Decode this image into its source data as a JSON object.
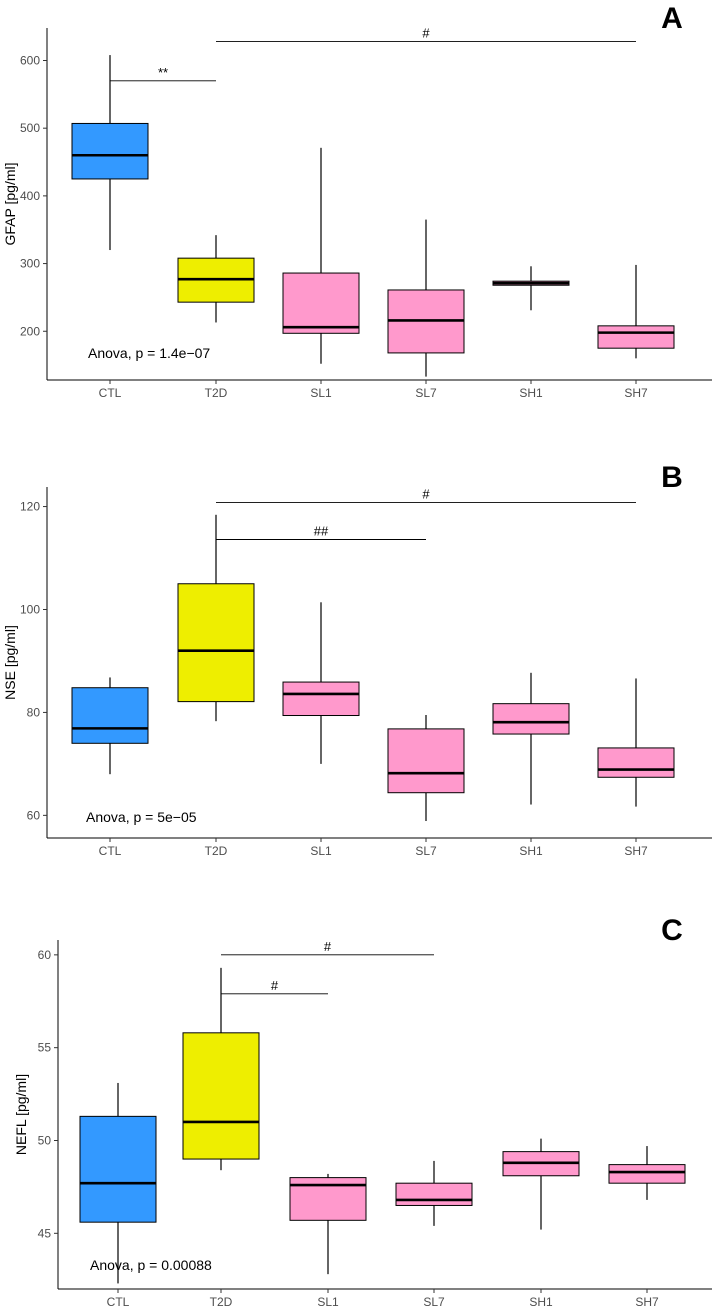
{
  "colors": {
    "CTL": "#3399ff",
    "T2D": "#eeee00",
    "SL1": "#ff99cc",
    "SL7": "#ff99cc",
    "SH1": "#ff99cc",
    "SH7": "#ff99cc"
  },
  "chart_data": [
    {
      "type": "box",
      "panel": "A",
      "ylabel": "GFAP [pg/ml]",
      "xlabel": "",
      "categories": [
        "CTL",
        "T2D",
        "SL1",
        "SL7",
        "SH1",
        "SH7"
      ],
      "ylim": [
        128,
        648
      ],
      "yticks": [
        200,
        300,
        400,
        500,
        600
      ],
      "boxes": [
        {
          "group": "CTL",
          "min": 320,
          "q1": 425,
          "median": 460,
          "q3": 507,
          "max": 608
        },
        {
          "group": "T2D",
          "min": 213,
          "q1": 243,
          "median": 277,
          "q3": 308,
          "max": 342
        },
        {
          "group": "SL1",
          "min": 152,
          "q1": 197,
          "median": 206,
          "q3": 286,
          "max": 471
        },
        {
          "group": "SL7",
          "min": 133,
          "q1": 168,
          "median": 216,
          "q3": 261,
          "max": 365
        },
        {
          "group": "SH1",
          "min": 231,
          "q1": 268,
          "median": 271,
          "q3": 274,
          "max": 296
        },
        {
          "group": "SH7",
          "min": 160,
          "q1": 175,
          "median": 198,
          "q3": 208,
          "max": 298
        }
      ],
      "annotation": "Anova, p = 1.4e−07",
      "significance": [
        {
          "from": "CTL",
          "to": "T2D",
          "y": 570,
          "label": "**"
        },
        {
          "from": "T2D",
          "to": "SH7",
          "y": 628,
          "label": "#"
        }
      ]
    },
    {
      "type": "box",
      "panel": "B",
      "ylabel": "NSE [pg/ml]",
      "xlabel": "",
      "categories": [
        "CTL",
        "T2D",
        "SL1",
        "SL7",
        "SH1",
        "SH7"
      ],
      "ylim": [
        55.6,
        123.8
      ],
      "yticks": [
        60,
        80,
        100,
        120
      ],
      "boxes": [
        {
          "group": "CTL",
          "min": 68.0,
          "q1": 74.0,
          "median": 76.9,
          "q3": 84.8,
          "max": 86.8
        },
        {
          "group": "T2D",
          "min": 78.3,
          "q1": 82.1,
          "median": 92.0,
          "q3": 105.0,
          "max": 118.4
        },
        {
          "group": "SL1",
          "min": 70.0,
          "q1": 79.4,
          "median": 83.6,
          "q3": 85.9,
          "max": 101.4
        },
        {
          "group": "SL7",
          "min": 58.9,
          "q1": 64.4,
          "median": 68.2,
          "q3": 76.8,
          "max": 79.5
        },
        {
          "group": "SH1",
          "min": 62.1,
          "q1": 75.8,
          "median": 78.1,
          "q3": 81.7,
          "max": 87.7
        },
        {
          "group": "SH7",
          "min": 61.7,
          "q1": 67.4,
          "median": 68.9,
          "q3": 73.1,
          "max": 86.6
        }
      ],
      "annotation": "Anova, p = 5e−05",
      "significance": [
        {
          "from": "T2D",
          "to": "SL7",
          "y": 113.6,
          "label": "##"
        },
        {
          "from": "T2D",
          "to": "SH7",
          "y": 120.8,
          "label": "#"
        }
      ]
    },
    {
      "type": "box",
      "panel": "C",
      "ylabel": "NEFL [pg/ml]",
      "xlabel": "",
      "categories": [
        "CTL",
        "T2D",
        "SL1",
        "SL7",
        "SH1",
        "SH7"
      ],
      "ylim": [
        42.0,
        60.8
      ],
      "yticks": [
        45,
        50,
        55,
        60
      ],
      "boxes": [
        {
          "group": "CTL",
          "min": 42.3,
          "q1": 45.6,
          "median": 47.7,
          "q3": 51.3,
          "max": 53.1
        },
        {
          "group": "T2D",
          "min": 48.4,
          "q1": 49.0,
          "median": 51.0,
          "q3": 55.8,
          "max": 59.3
        },
        {
          "group": "SL1",
          "min": 42.8,
          "q1": 45.7,
          "median": 47.6,
          "q3": 48.0,
          "max": 48.2
        },
        {
          "group": "SL7",
          "min": 45.4,
          "q1": 46.5,
          "median": 46.8,
          "q3": 47.7,
          "max": 48.9
        },
        {
          "group": "SH1",
          "min": 45.2,
          "q1": 48.1,
          "median": 48.8,
          "q3": 49.4,
          "max": 50.1
        },
        {
          "group": "SH7",
          "min": 46.8,
          "q1": 47.7,
          "median": 48.3,
          "q3": 48.7,
          "max": 49.7
        }
      ],
      "annotation": "Anova, p = 0.00088",
      "significance": [
        {
          "from": "T2D",
          "to": "SL1",
          "y": 57.9,
          "label": "#"
        },
        {
          "from": "T2D",
          "to": "SL7",
          "y": 60.0,
          "label": "#"
        }
      ]
    }
  ]
}
